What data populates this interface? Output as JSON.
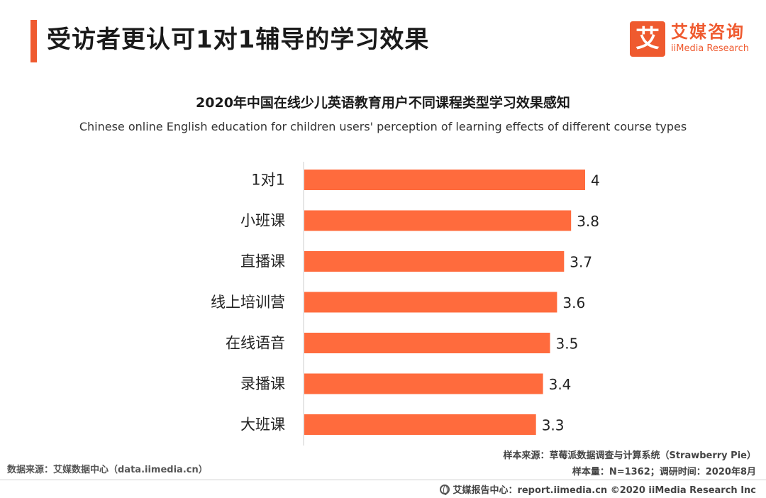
{
  "header": {
    "title": "受访者更认可1对1辅导的学习效果",
    "logo_mark": "艾",
    "logo_cn": "艾媒咨询",
    "logo_en": "iiMedia Research",
    "accent_color": "#ef5a2f"
  },
  "chart_data": {
    "type": "bar",
    "orientation": "horizontal",
    "title": "2020年中国在线少儿英语教育用户不同课程类型学习效果感知",
    "subtitle": "Chinese online English education for children users' perception of learning effects of different course types",
    "categories": [
      "1对1",
      "小班课",
      "直播课",
      "线上培训营",
      "在线语音",
      "录播课",
      "大班课"
    ],
    "values": [
      4,
      3.8,
      3.7,
      3.6,
      3.5,
      3.4,
      3.3
    ],
    "value_labels": [
      "4",
      "3.8",
      "3.7",
      "3.6",
      "3.5",
      "3.4",
      "3.3"
    ],
    "xlim": [
      0,
      4
    ],
    "bar_color": "#ff6b3d",
    "grid": false,
    "legend": "none"
  },
  "footer": {
    "data_source": "数据来源：艾媒数据中心（data.iimedia.cn）",
    "sample_source": "样本来源：草莓派数据调查与计算系统（Strawberry Pie）",
    "sample_size": "样本量：N=1362；调研时间：2020年8月",
    "report_center": "艾媒报告中心：report.iimedia.cn  ©2020  iiMedia Research  Inc"
  }
}
